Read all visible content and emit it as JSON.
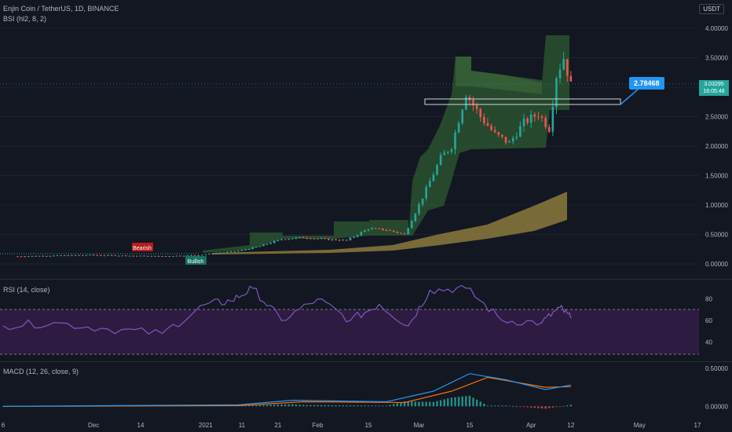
{
  "header": {
    "symbol_line": "Enjin Coin / TetherUS, 1D, BINANCE",
    "indicator_line": "BSI (hl2, 8, 2)",
    "currency_badge": "USDT"
  },
  "rsi_panel": {
    "title": "RSI (14, close)",
    "ticks": [
      "80",
      "60",
      "40"
    ]
  },
  "macd_panel": {
    "title": "MACD (12, 26, close, 9)",
    "ticks": [
      "0.50000",
      "0.00000"
    ]
  },
  "price_axis": {
    "ticks": [
      "4.00000",
      "3.50000",
      "3.00000",
      "2.50000",
      "2.00000",
      "1.50000",
      "1.00000",
      "0.50000",
      "0.00000"
    ],
    "last_price": "3.03295",
    "countdown": "16:05:48"
  },
  "time_axis": {
    "labels": [
      "6",
      "Dec",
      "14",
      "2021",
      "11",
      "21",
      "Feb",
      "15",
      "Mar",
      "15",
      "Apr",
      "12",
      "May",
      "17"
    ]
  },
  "annotations": {
    "callout_value": "2.78468",
    "bearish_label": "Bearish",
    "bullish_label": "Bullish"
  },
  "colors": {
    "up": "#26a69a",
    "down": "#ef5350",
    "rsi_line": "#7e57c2",
    "rsi_band": "#3b1e4e",
    "macd_line": "#2196f3",
    "signal_line": "#ff6d00",
    "bsi_band": "#2e5a32",
    "ma_band": "#8c7a3b",
    "callout": "#2196f3"
  },
  "chart_data": {
    "type": "candlestick",
    "symbol": "Enjin Coin / TetherUS",
    "interval": "1D",
    "exchange": "BINANCE",
    "ylim": [
      -0.15,
      4.1
    ],
    "x_range": [
      "2020-11-06",
      "2021-05-17"
    ],
    "price_series": [
      {
        "date": "2020-11-10",
        "close": 0.13
      },
      {
        "date": "2020-11-20",
        "close": 0.14
      },
      {
        "date": "2020-11-30",
        "close": 0.15
      },
      {
        "date": "2020-12-10",
        "close": 0.14
      },
      {
        "date": "2020-12-20",
        "close": 0.13
      },
      {
        "date": "2020-12-30",
        "close": 0.15
      },
      {
        "date": "2021-01-05",
        "close": 0.19
      },
      {
        "date": "2021-01-10",
        "close": 0.22
      },
      {
        "date": "2021-01-16",
        "close": 0.3
      },
      {
        "date": "2021-01-22",
        "close": 0.42
      },
      {
        "date": "2021-01-28",
        "close": 0.45
      },
      {
        "date": "2021-02-03",
        "close": 0.42
      },
      {
        "date": "2021-02-09",
        "close": 0.4
      },
      {
        "date": "2021-02-15",
        "close": 0.6
      },
      {
        "date": "2021-02-20",
        "close": 0.58
      },
      {
        "date": "2021-02-25",
        "close": 0.5
      },
      {
        "date": "2021-03-01",
        "close": 1.0
      },
      {
        "date": "2021-03-04",
        "close": 1.4
      },
      {
        "date": "2021-03-07",
        "close": 1.8
      },
      {
        "date": "2021-03-10",
        "close": 2.0
      },
      {
        "date": "2021-03-14",
        "close": 2.9
      },
      {
        "date": "2021-03-18",
        "close": 2.5
      },
      {
        "date": "2021-03-22",
        "close": 2.2
      },
      {
        "date": "2021-03-26",
        "close": 2.05
      },
      {
        "date": "2021-03-30",
        "close": 2.4
      },
      {
        "date": "2021-04-03",
        "close": 2.55
      },
      {
        "date": "2021-04-06",
        "close": 2.3
      },
      {
        "date": "2021-04-08",
        "close": 3.2
      },
      {
        "date": "2021-04-10",
        "close": 3.5
      },
      {
        "date": "2021-04-12",
        "close": 3.03
      }
    ],
    "rsi": {
      "name": "RSI (14, close)",
      "ylim": [
        25,
        95
      ],
      "band": [
        30,
        70
      ],
      "points": [
        {
          "date": "2020-11-06",
          "value": 55
        },
        {
          "date": "2020-11-20",
          "value": 58
        },
        {
          "date": "2020-12-05",
          "value": 52
        },
        {
          "date": "2020-12-20",
          "value": 48
        },
        {
          "date": "2021-01-01",
          "value": 75
        },
        {
          "date": "2021-01-08",
          "value": 78
        },
        {
          "date": "2021-01-14",
          "value": 90
        },
        {
          "date": "2021-01-22",
          "value": 60
        },
        {
          "date": "2021-02-01",
          "value": 80
        },
        {
          "date": "2021-02-10",
          "value": 60
        },
        {
          "date": "2021-02-18",
          "value": 75
        },
        {
          "date": "2021-02-26",
          "value": 55
        },
        {
          "date": "2021-03-04",
          "value": 88
        },
        {
          "date": "2021-03-14",
          "value": 90
        },
        {
          "date": "2021-03-24",
          "value": 60
        },
        {
          "date": "2021-04-04",
          "value": 58
        },
        {
          "date": "2021-04-09",
          "value": 72
        },
        {
          "date": "2021-04-12",
          "value": 62
        }
      ]
    },
    "macd": {
      "name": "MACD (12, 26, close, 9)",
      "ylim": [
        -0.1,
        0.52
      ],
      "macd_line": [
        {
          "date": "2020-11-06",
          "value": 0.0
        },
        {
          "date": "2021-01-10",
          "value": 0.02
        },
        {
          "date": "2021-01-25",
          "value": 0.08
        },
        {
          "date": "2021-02-20",
          "value": 0.06
        },
        {
          "date": "2021-03-05",
          "value": 0.2
        },
        {
          "date": "2021-03-15",
          "value": 0.43
        },
        {
          "date": "2021-03-25",
          "value": 0.35
        },
        {
          "date": "2021-04-05",
          "value": 0.22
        },
        {
          "date": "2021-04-12",
          "value": 0.28
        }
      ],
      "signal_line": [
        {
          "date": "2020-11-06",
          "value": 0.0
        },
        {
          "date": "2021-01-10",
          "value": 0.01
        },
        {
          "date": "2021-01-28",
          "value": 0.06
        },
        {
          "date": "2021-02-25",
          "value": 0.05
        },
        {
          "date": "2021-03-10",
          "value": 0.2
        },
        {
          "date": "2021-03-20",
          "value": 0.38
        },
        {
          "date": "2021-04-05",
          "value": 0.25
        },
        {
          "date": "2021-04-12",
          "value": 0.26
        }
      ]
    }
  }
}
